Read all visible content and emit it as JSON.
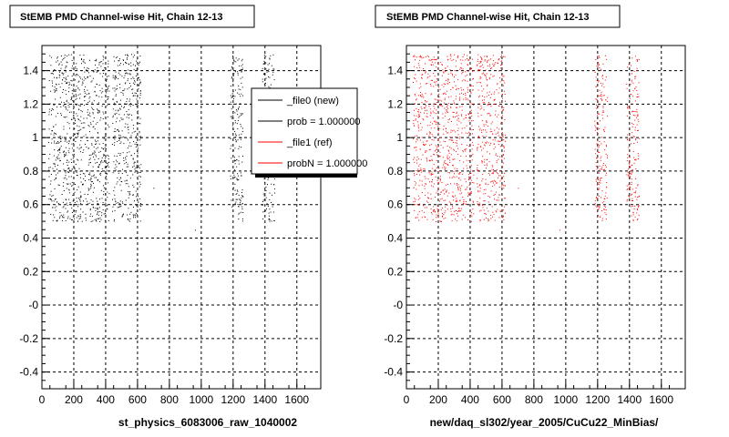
{
  "chart_data": [
    {
      "type": "scatter",
      "title": "StEMB PMD Channel-wise Hit, Chain 12-13",
      "xlabel": "st_physics_6083006_raw_1040002",
      "ylabel": "",
      "xlim": [
        0,
        1750
      ],
      "ylim": [
        -0.5,
        1.55
      ],
      "xticks": [
        "0",
        "200",
        "400",
        "600",
        "800",
        "1000",
        "1200",
        "1400",
        "1600"
      ],
      "yticks": [
        "-0.4",
        "-0.2",
        "-0",
        "0.2",
        "0.4",
        "0.6",
        "0.8",
        "1",
        "1.2",
        "1.4"
      ],
      "grid": true,
      "marker_color": "#000000",
      "bands": [
        {
          "x_range": [
            40,
            200
          ],
          "y_range": [
            0.5,
            1.5
          ]
        },
        {
          "x_range": [
            200,
            420
          ],
          "y_range": [
            0.5,
            1.5
          ]
        },
        {
          "x_range": [
            440,
            620
          ],
          "y_range": [
            0.5,
            1.5
          ]
        },
        {
          "x_range": [
            1180,
            1260
          ],
          "y_range": [
            0.5,
            1.5
          ]
        },
        {
          "x_range": [
            1380,
            1460
          ],
          "y_range": [
            0.5,
            1.5
          ]
        }
      ],
      "legend": {
        "placement": "top-right",
        "entries": [
          {
            "label": "_file0 (new)",
            "color": "#000000"
          },
          {
            "label": "prob = 1.000000",
            "color": "#000000"
          },
          {
            "label": "_file1 (ref)",
            "color": "#ff0000"
          },
          {
            "label": "probN = 1.000000",
            "color": "#ff0000"
          }
        ]
      }
    },
    {
      "type": "scatter",
      "title": "StEMB PMD Channel-wise Hit, Chain 12-13",
      "xlabel": "new/daq_sl302/year_2005/CuCu22_MinBias/",
      "ylabel": "",
      "xlim": [
        0,
        1750
      ],
      "ylim": [
        -0.5,
        1.55
      ],
      "xticks": [
        "0",
        "200",
        "400",
        "600",
        "800",
        "1000",
        "1200",
        "1400",
        "1600"
      ],
      "yticks": [
        "-0.4",
        "-0.2",
        "-0",
        "0.2",
        "0.4",
        "0.6",
        "0.8",
        "1",
        "1.2",
        "1.4"
      ],
      "grid": true,
      "marker_color": "#ff0000",
      "bands": [
        {
          "x_range": [
            40,
            200
          ],
          "y_range": [
            0.5,
            1.5
          ]
        },
        {
          "x_range": [
            200,
            420
          ],
          "y_range": [
            0.5,
            1.5
          ]
        },
        {
          "x_range": [
            440,
            620
          ],
          "y_range": [
            0.5,
            1.5
          ]
        },
        {
          "x_range": [
            1180,
            1260
          ],
          "y_range": [
            0.5,
            1.5
          ]
        },
        {
          "x_range": [
            1380,
            1460
          ],
          "y_range": [
            0.5,
            1.5
          ]
        }
      ]
    }
  ]
}
